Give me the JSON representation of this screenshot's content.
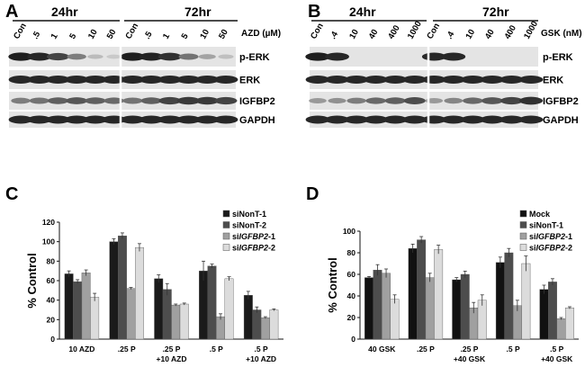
{
  "panels": {
    "A": {
      "label": "A",
      "groups": [
        "24hr",
        "72hr"
      ],
      "lanes": [
        "Con",
        ".5",
        "1",
        "5",
        "10",
        "50",
        "Con",
        ".5",
        "1",
        "5",
        "10",
        "50"
      ],
      "unit": "AZD (µM)",
      "blots": [
        {
          "name": "p-ERK",
          "intensity": [
            0.95,
            0.9,
            0.75,
            0.45,
            0.12,
            0.05,
            0.95,
            0.92,
            0.85,
            0.5,
            0.25,
            0.1
          ]
        },
        {
          "name": "ERK",
          "intensity": [
            0.9,
            0.9,
            0.9,
            0.9,
            0.9,
            0.9,
            0.9,
            0.9,
            0.9,
            0.9,
            0.9,
            0.9
          ]
        },
        {
          "name": "IGFBP2",
          "intensity": [
            0.45,
            0.5,
            0.6,
            0.65,
            0.6,
            0.55,
            0.5,
            0.6,
            0.75,
            0.8,
            0.8,
            0.75
          ]
        },
        {
          "name": "GAPDH",
          "intensity": [
            0.9,
            0.9,
            0.9,
            0.9,
            0.9,
            0.9,
            0.9,
            0.9,
            0.9,
            0.9,
            0.9,
            0.9
          ]
        }
      ]
    },
    "B": {
      "label": "B",
      "groups": [
        "24hr",
        "72hr"
      ],
      "lanes": [
        "Con",
        ".4",
        "10",
        "40",
        "400",
        "1000",
        "Con",
        ".4",
        "10",
        "40",
        "400",
        "1000"
      ],
      "unit": "GSK (nM)",
      "blots": [
        {
          "name": "p-ERK",
          "intensity": [
            0.95,
            0.9,
            0.0,
            0.0,
            0.0,
            0.0,
            0.9,
            0.9,
            0.0,
            0.0,
            0.0,
            0.0
          ]
        },
        {
          "name": "ERK",
          "intensity": [
            0.9,
            0.9,
            0.9,
            0.9,
            0.9,
            0.9,
            0.9,
            0.9,
            0.9,
            0.9,
            0.9,
            0.9
          ]
        },
        {
          "name": "IGFBP2",
          "intensity": [
            0.3,
            0.35,
            0.45,
            0.55,
            0.6,
            0.7,
            0.3,
            0.4,
            0.55,
            0.65,
            0.75,
            0.85
          ]
        },
        {
          "name": "GAPDH",
          "intensity": [
            0.9,
            0.9,
            0.9,
            0.9,
            0.9,
            0.9,
            0.9,
            0.9,
            0.9,
            0.9,
            0.9,
            0.9
          ]
        }
      ]
    }
  },
  "chart_data": [
    {
      "panel": "C",
      "type": "bar",
      "ylabel": "% Control",
      "ylim": [
        0,
        120
      ],
      "yticks": [
        0,
        20,
        40,
        60,
        80,
        100,
        120
      ],
      "categories": [
        "10 AZD",
        ".25 P",
        ".25 P\n+10 AZD",
        ".5 P",
        ".5 P\n+10 AZD"
      ],
      "series": [
        {
          "name": "siNonT-1",
          "color": "#1a1a1a",
          "values": [
            67,
            100,
            62,
            70,
            45
          ],
          "errors": [
            3,
            3,
            4,
            10,
            4
          ]
        },
        {
          "name": "siNonT-2",
          "color": "#4d4d4d",
          "values": [
            59,
            106,
            51,
            75,
            30
          ],
          "errors": [
            2,
            3,
            6,
            2,
            3
          ]
        },
        {
          "name": "siIGFBP2-1",
          "color": "#a0a0a0",
          "values": [
            68,
            52,
            35,
            23,
            22
          ],
          "errors": [
            3,
            1,
            1,
            3,
            1
          ]
        },
        {
          "name": "siIGFBP2-2",
          "color": "#dcdcdc",
          "values": [
            43,
            94,
            36,
            62,
            30
          ],
          "errors": [
            4,
            4,
            1,
            2,
            1
          ]
        }
      ]
    },
    {
      "panel": "D",
      "type": "bar",
      "ylabel": "% Control",
      "ylim": [
        0,
        100
      ],
      "yticks": [
        0,
        20,
        40,
        60,
        80,
        100
      ],
      "categories": [
        "40 GSK",
        ".25 P",
        ".25 P\n+40 GSK",
        ".5 P",
        ".5 P\n+40 GSK"
      ],
      "series": [
        {
          "name": "Mock",
          "color": "#111111",
          "values": [
            57,
            84,
            55,
            71,
            46
          ],
          "errors": [
            1,
            4,
            2,
            5,
            4
          ]
        },
        {
          "name": "siNonT-1",
          "color": "#4d4d4d",
          "values": [
            64,
            92,
            60,
            80,
            53
          ],
          "errors": [
            5,
            3,
            3,
            4,
            3
          ]
        },
        {
          "name": "siIGFBP2-1",
          "color": "#a0a0a0",
          "values": [
            61,
            57,
            29,
            31,
            19
          ],
          "errors": [
            4,
            4,
            5,
            5,
            1
          ]
        },
        {
          "name": "siIGFBP2-2",
          "color": "#dcdcdc",
          "values": [
            37,
            83,
            36,
            70,
            29
          ],
          "errors": [
            4,
            4,
            5,
            7,
            1
          ]
        }
      ]
    }
  ]
}
